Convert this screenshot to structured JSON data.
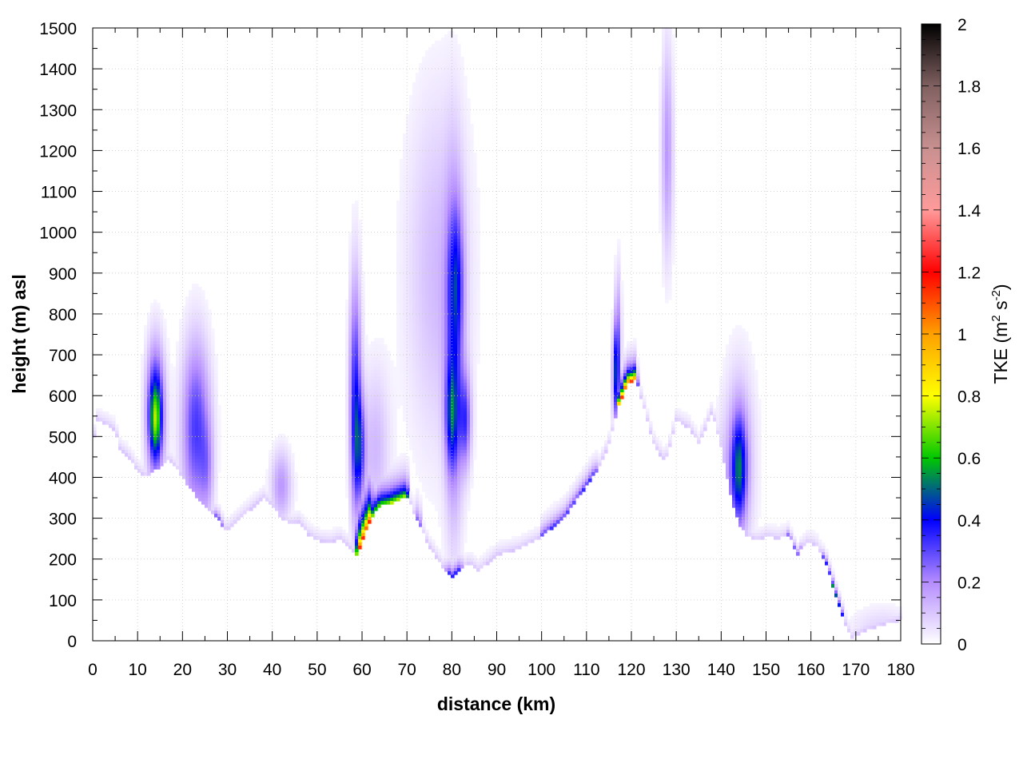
{
  "chart_data": {
    "type": "heatmap",
    "title": "",
    "xlabel": "distance (km)",
    "ylabel": "height (m) asl",
    "xlim": [
      0,
      180
    ],
    "ylim": [
      0,
      1500
    ],
    "x_ticks": [
      0,
      10,
      20,
      30,
      40,
      50,
      60,
      70,
      80,
      90,
      100,
      110,
      120,
      130,
      140,
      150,
      160,
      170,
      180
    ],
    "y_ticks": [
      0,
      100,
      200,
      300,
      400,
      500,
      600,
      700,
      800,
      900,
      1000,
      1100,
      1200,
      1300,
      1400,
      1500
    ],
    "grid": true,
    "colorbar": {
      "label_main": "TKE (m",
      "label_sup1": "2",
      "label_mid": " s",
      "label_sup2": "-2",
      "label_end": ")",
      "range": [
        0,
        2
      ],
      "ticks": [
        "0",
        "0.2",
        "0.4",
        "0.6",
        "0.8",
        "1",
        "1.2",
        "1.4",
        "1.6",
        "1.8",
        "2"
      ],
      "stops": [
        {
          "value": 0.0,
          "color": "#ffffff"
        },
        {
          "value": 0.2,
          "color": "#b48cff"
        },
        {
          "value": 0.4,
          "color": "#0000ff"
        },
        {
          "value": 0.6,
          "color": "#00c800"
        },
        {
          "value": 0.8,
          "color": "#ffff00"
        },
        {
          "value": 1.0,
          "color": "#ffa000"
        },
        {
          "value": 1.2,
          "color": "#ff0000"
        },
        {
          "value": 1.4,
          "color": "#ff9a9a"
        },
        {
          "value": 1.6,
          "color": "#c89090"
        },
        {
          "value": 1.8,
          "color": "#806060"
        },
        {
          "value": 2.0,
          "color": "#000000"
        }
      ]
    },
    "terrain": [
      [
        0,
        480
      ],
      [
        1,
        540
      ],
      [
        3,
        530
      ],
      [
        5,
        515
      ],
      [
        6,
        470
      ],
      [
        8,
        450
      ],
      [
        10,
        415
      ],
      [
        12,
        400
      ],
      [
        13,
        410
      ],
      [
        17,
        445
      ],
      [
        20,
        400
      ],
      [
        22,
        370
      ],
      [
        24,
        340
      ],
      [
        26,
        315
      ],
      [
        28,
        300
      ],
      [
        29,
        275
      ],
      [
        30,
        270
      ],
      [
        33,
        300
      ],
      [
        35,
        320
      ],
      [
        38,
        350
      ],
      [
        40,
        330
      ],
      [
        42,
        300
      ],
      [
        44,
        285
      ],
      [
        46,
        290
      ],
      [
        48,
        260
      ],
      [
        50,
        245
      ],
      [
        53,
        240
      ],
      [
        55,
        250
      ],
      [
        57,
        230
      ],
      [
        59,
        210
      ],
      [
        60,
        245
      ],
      [
        62,
        300
      ],
      [
        64,
        330
      ],
      [
        66,
        335
      ],
      [
        68,
        345
      ],
      [
        70,
        355
      ],
      [
        72,
        300
      ],
      [
        75,
        230
      ],
      [
        78,
        180
      ],
      [
        80,
        155
      ],
      [
        82,
        175
      ],
      [
        84,
        190
      ],
      [
        86,
        170
      ],
      [
        88,
        190
      ],
      [
        90,
        210
      ],
      [
        95,
        225
      ],
      [
        100,
        255
      ],
      [
        105,
        300
      ],
      [
        110,
        380
      ],
      [
        113,
        430
      ],
      [
        115,
        480
      ],
      [
        117,
        570
      ],
      [
        119,
        630
      ],
      [
        121,
        640
      ],
      [
        123,
        560
      ],
      [
        125,
        480
      ],
      [
        127,
        445
      ],
      [
        128,
        450
      ],
      [
        130,
        540
      ],
      [
        133,
        520
      ],
      [
        135,
        480
      ],
      [
        138,
        560
      ],
      [
        140,
        470
      ],
      [
        142,
        360
      ],
      [
        144,
        280
      ],
      [
        146,
        255
      ],
      [
        148,
        245
      ],
      [
        150,
        255
      ],
      [
        153,
        250
      ],
      [
        155,
        260
      ],
      [
        157,
        210
      ],
      [
        159,
        240
      ],
      [
        161,
        235
      ],
      [
        163,
        200
      ],
      [
        165,
        130
      ],
      [
        167,
        60
      ],
      [
        169,
        5
      ],
      [
        172,
        25
      ],
      [
        176,
        40
      ],
      [
        180,
        50
      ]
    ],
    "blobs": [
      {
        "x": 14,
        "y": 560,
        "sx": 1.4,
        "sy": 110,
        "v": 0.45
      },
      {
        "x": 14,
        "y": 540,
        "sx": 0.8,
        "sy": 55,
        "v": 0.3
      },
      {
        "x": 23,
        "y": 520,
        "sx": 2.2,
        "sy": 150,
        "v": 0.32
      },
      {
        "x": 25.5,
        "y": 420,
        "sx": 1.0,
        "sy": 80,
        "v": 0.12
      },
      {
        "x": 42,
        "y": 380,
        "sx": 1.6,
        "sy": 60,
        "v": 0.18
      },
      {
        "x": 58.5,
        "y": 600,
        "sx": 0.9,
        "sy": 200,
        "v": 0.35
      },
      {
        "x": 59.5,
        "y": 470,
        "sx": 0.9,
        "sy": 90,
        "v": 0.28
      },
      {
        "x": 63,
        "y": 470,
        "sx": 2.2,
        "sy": 140,
        "v": 0.12
      },
      {
        "x": 77,
        "y": 900,
        "sx": 5.0,
        "sy": 300,
        "v": 0.12
      },
      {
        "x": 80.5,
        "y": 700,
        "sx": 1.4,
        "sy": 300,
        "v": 0.22
      },
      {
        "x": 80,
        "y": 550,
        "sx": 1.0,
        "sy": 90,
        "v": 0.3
      },
      {
        "x": 83,
        "y": 540,
        "sx": 0.9,
        "sy": 80,
        "v": 0.28
      },
      {
        "x": 81,
        "y": 880,
        "sx": 1.2,
        "sy": 120,
        "v": 0.2
      },
      {
        "x": 116.5,
        "y": 650,
        "sx": 0.5,
        "sy": 80,
        "v": 0.35
      },
      {
        "x": 117,
        "y": 720,
        "sx": 0.5,
        "sy": 120,
        "v": 0.22
      },
      {
        "x": 128,
        "y": 1200,
        "sx": 0.9,
        "sy": 180,
        "v": 0.18
      },
      {
        "x": 144,
        "y": 420,
        "sx": 1.2,
        "sy": 90,
        "v": 0.38
      },
      {
        "x": 144,
        "y": 450,
        "sx": 2.5,
        "sy": 160,
        "v": 0.15
      },
      {
        "x": 140,
        "y": 380,
        "sx": 2.0,
        "sy": 100,
        "v": 0.06
      },
      {
        "x": 176,
        "y": 25,
        "sx": 5.0,
        "sy": 40,
        "v": 0.08
      }
    ],
    "surface_boost": [
      {
        "x0": 59,
        "x1": 62,
        "peak": 1.2,
        "depth": 50
      },
      {
        "x0": 62,
        "x1": 70,
        "peak": 0.75,
        "depth": 30
      },
      {
        "x0": 72,
        "x1": 73,
        "peak": 0.3,
        "depth": 30
      },
      {
        "x0": 79,
        "x1": 82,
        "peak": 0.4,
        "depth": 20
      },
      {
        "x0": 100,
        "x1": 112,
        "peak": 0.35,
        "depth": 20
      },
      {
        "x0": 117,
        "x1": 121,
        "peak": 1.15,
        "depth": 25
      },
      {
        "x0": 163,
        "x1": 167,
        "peak": 0.55,
        "depth": 12
      },
      {
        "x0": 27,
        "x1": 29,
        "peak": 0.3,
        "depth": 15
      },
      {
        "x0": 155,
        "x1": 158,
        "peak": 0.3,
        "depth": 12
      }
    ]
  }
}
